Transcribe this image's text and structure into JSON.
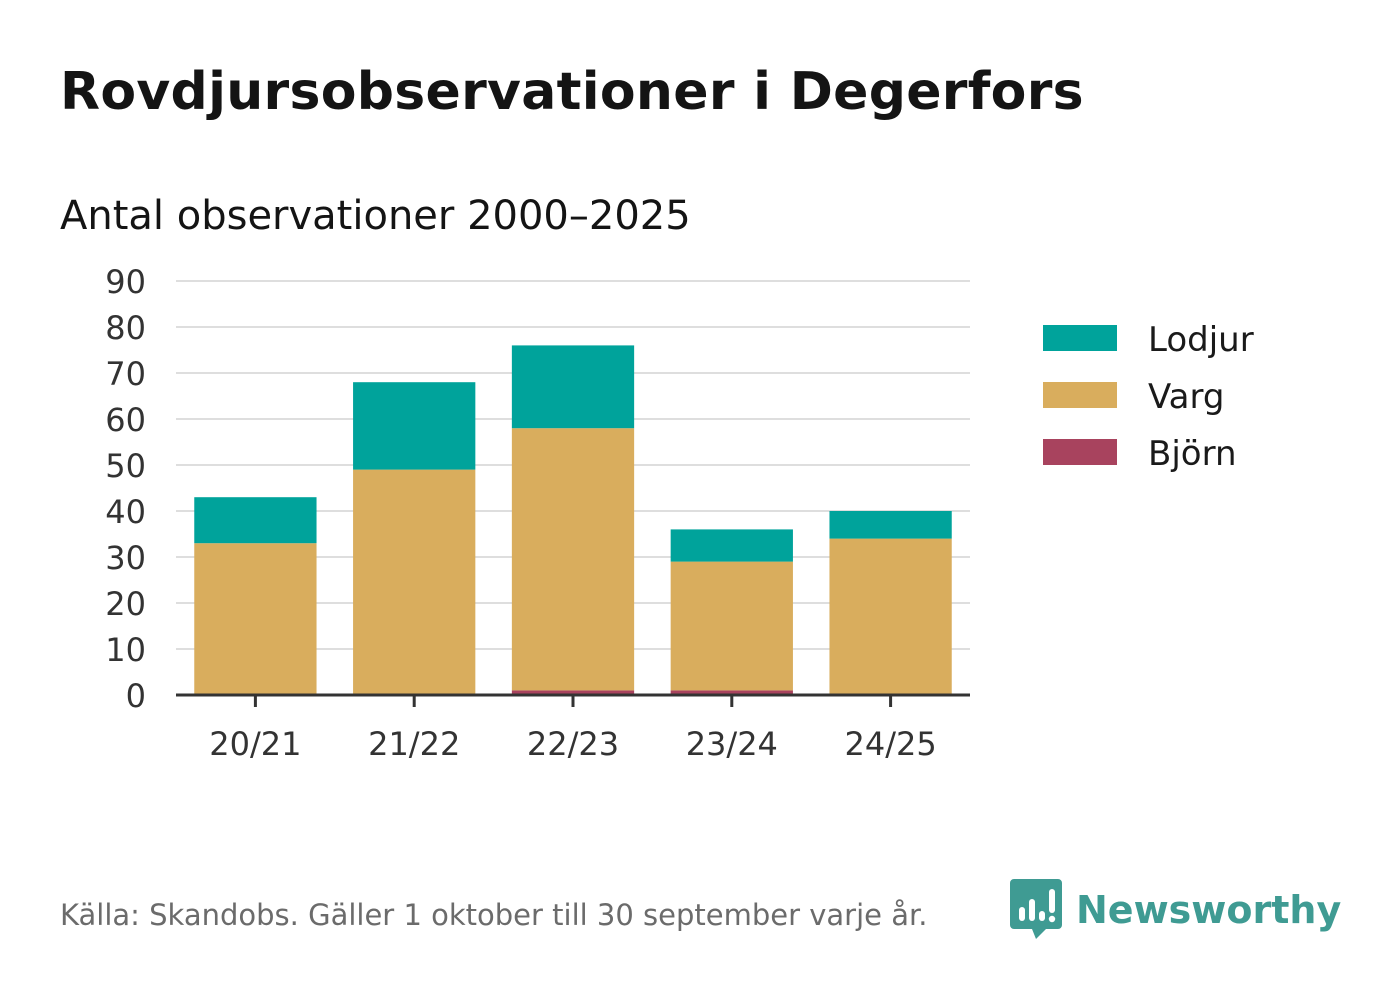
{
  "title": "Rovdjursobservationer i Degerfors",
  "subtitle": "Antal observationer 2000–2025",
  "source": "Källa: Skandobs. Gäller 1 oktober till 30 september varje år.",
  "brand": {
    "name": "Newsworthy",
    "icon": "newsworthy-logo-icon",
    "color": "#3f9b93"
  },
  "chart_data": {
    "type": "bar",
    "stacked": true,
    "categories": [
      "20/21",
      "21/22",
      "22/23",
      "23/24",
      "24/25"
    ],
    "series": [
      {
        "name": "Björn",
        "color": "#a8435e",
        "values": [
          0,
          0,
          1,
          1,
          0
        ]
      },
      {
        "name": "Varg",
        "color": "#d9ad5d",
        "values": [
          33,
          49,
          57,
          28,
          34
        ]
      },
      {
        "name": "Lodjur",
        "color": "#00a39b",
        "values": [
          10,
          19,
          18,
          7,
          6
        ]
      }
    ],
    "legend_order": [
      "Lodjur",
      "Varg",
      "Björn"
    ],
    "yticks": [
      "0",
      "10",
      "20",
      "30",
      "40",
      "50",
      "60",
      "70",
      "80",
      "90"
    ],
    "ylim": [
      0,
      90
    ],
    "grid": true,
    "legend_position": "right",
    "xlabel": "",
    "ylabel": ""
  }
}
